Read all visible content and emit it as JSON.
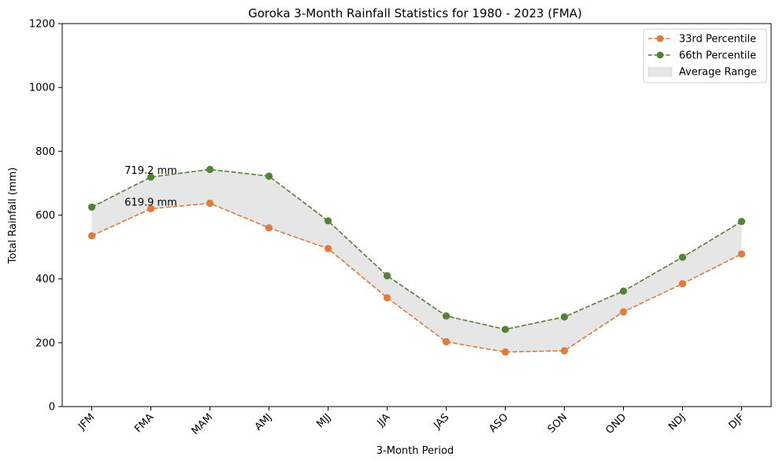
{
  "chart_data": {
    "type": "line",
    "title": "Goroka 3-Month Rainfall Statistics for 1980 - 2023 (FMA)",
    "xlabel": "3-Month Period",
    "ylabel": "Total Rainfall (mm)",
    "categories": [
      "JFM",
      "FMA",
      "MAM",
      "AMJ",
      "MJJ",
      "JJA",
      "JAS",
      "ASO",
      "SON",
      "OND",
      "NDJ",
      "DJF"
    ],
    "ylim": [
      0,
      1200
    ],
    "yticks": [
      0,
      200,
      400,
      600,
      800,
      1000,
      1200
    ],
    "grid": false,
    "legend_position": "top-right",
    "series": [
      {
        "name": "33rd Percentile",
        "color": "#e07b39",
        "style": "dashed",
        "marker": "circle",
        "values": [
          535,
          619.9,
          637,
          560,
          495,
          341,
          203,
          171,
          175,
          297,
          385,
          478
        ]
      },
      {
        "name": "66th Percentile",
        "color": "#538135",
        "style": "dashed",
        "marker": "circle",
        "values": [
          625,
          719.2,
          743,
          722,
          582,
          410,
          284,
          242,
          281,
          362,
          468,
          580
        ]
      }
    ],
    "fill_between": {
      "name": "Average Range",
      "color": "#e6e6e6",
      "lower_series": 0,
      "upper_series": 1
    },
    "annotations": [
      {
        "text": "719.2 mm",
        "category": "FMA",
        "value": 719.2
      },
      {
        "text": "619.9 mm",
        "category": "FMA",
        "value": 619.9
      }
    ]
  }
}
